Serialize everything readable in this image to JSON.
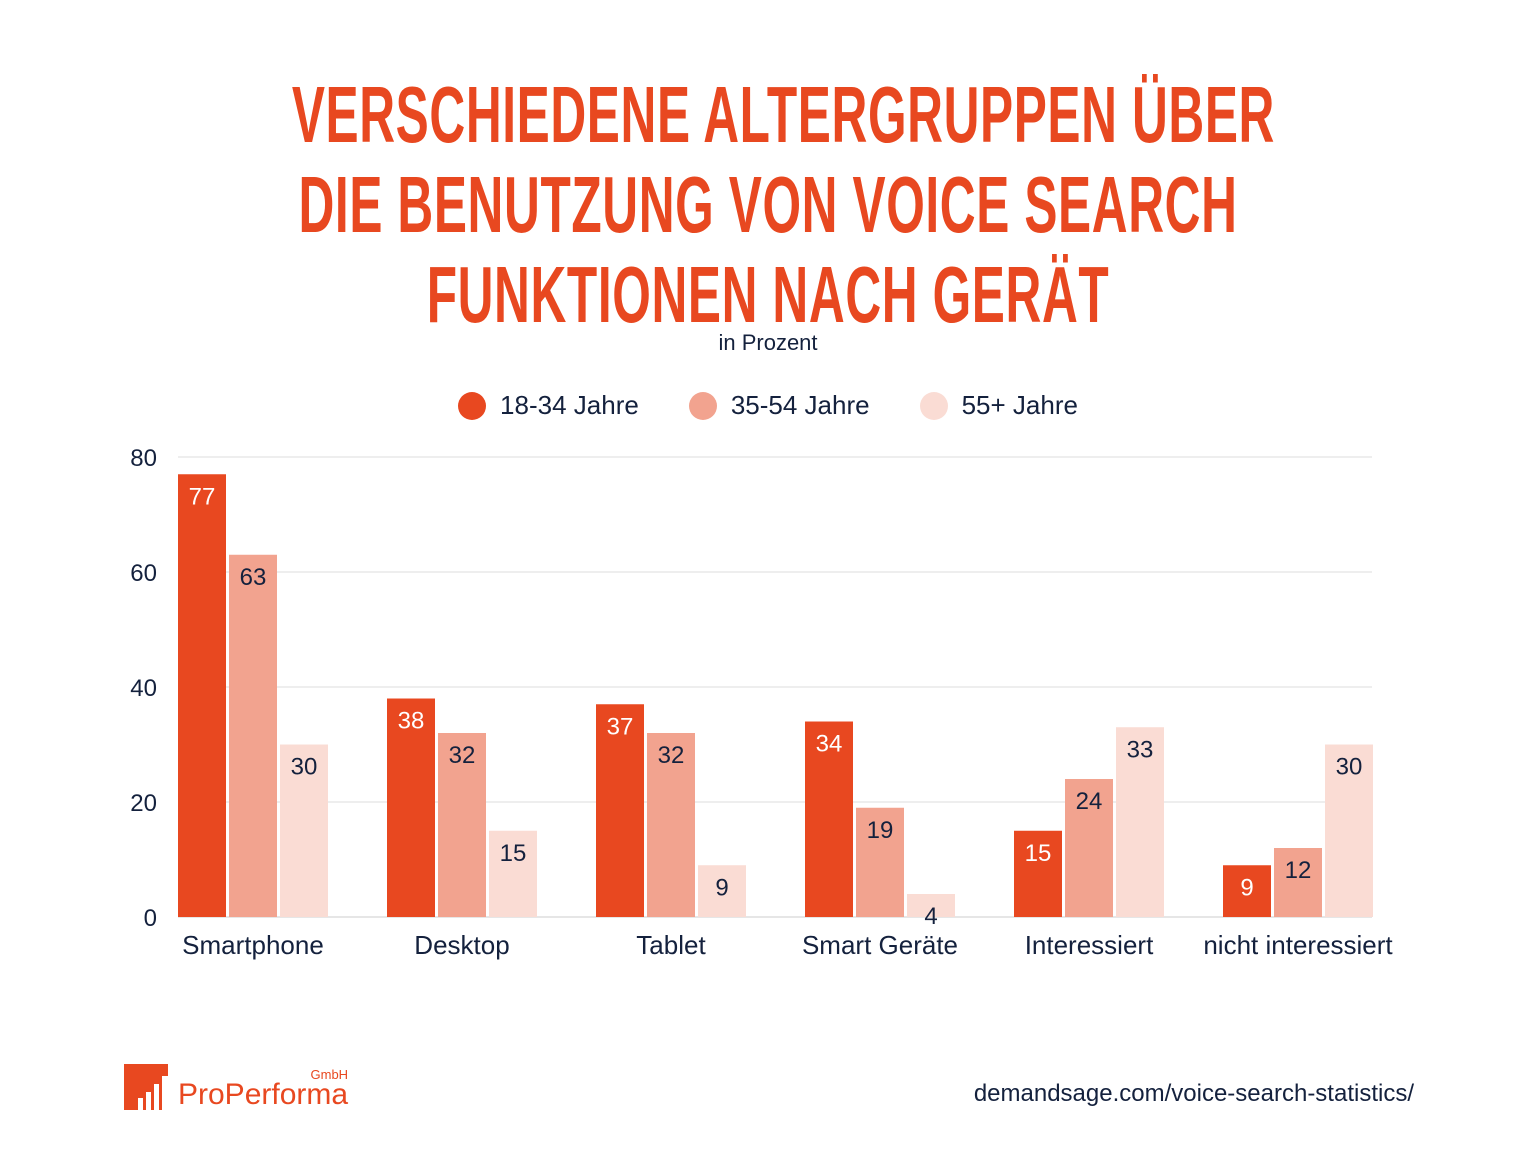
{
  "title_lines": [
    "VERSCHIEDENE ALTERGRUPPEN ÜBER",
    "DIE BENUTZUNG VON VOICE SEARCH",
    "FUNKTIONEN NACH GERÄT"
  ],
  "subtitle": "in Prozent",
  "chart_data": {
    "type": "bar",
    "title": "VERSCHIEDENE ALTERGRUPPEN ÜBER DIE BENUTZUNG VON VOICE SEARCH FUNKTIONEN NACH GERÄT",
    "subtitle": "in Prozent",
    "categories": [
      "Smartphone",
      "Desktop",
      "Tablet",
      "Smart Geräte",
      "Interessiert",
      "nicht interessiert"
    ],
    "series": [
      {
        "name": "18-34 Jahre",
        "color": "#e84820",
        "label_color": "#ffffff",
        "values": [
          77,
          38,
          37,
          34,
          15,
          9
        ]
      },
      {
        "name": "35-54 Jahre",
        "color": "#f2a38f",
        "label_color": "#14213d",
        "values": [
          63,
          32,
          32,
          19,
          24,
          12
        ]
      },
      {
        "name": "55+ Jahre",
        "color": "#fadcd4",
        "label_color": "#14213d",
        "values": [
          30,
          15,
          9,
          4,
          33,
          30
        ]
      }
    ],
    "yticks": [
      0,
      20,
      40,
      60,
      80
    ],
    "ylim": [
      0,
      80
    ],
    "xlabel": "",
    "ylabel": "",
    "legend": "top-center",
    "grid": true
  },
  "logo": {
    "name": "ProPerforma",
    "suffix": "GmbH"
  },
  "source": "demandsage.com/voice-search-statistics/"
}
